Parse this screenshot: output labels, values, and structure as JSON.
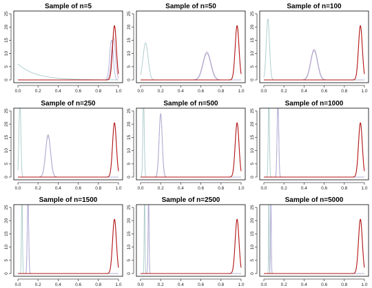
{
  "figure": {
    "colors": {
      "true_density": "#b01010",
      "estimate_a": "#a8c8c8",
      "estimate_b": "#c0a0c0",
      "estimate_c": "#b0b0d8",
      "frame": "#000000"
    }
  },
  "chart_data": [
    {
      "type": "line",
      "title": "Sample of n=5",
      "xlim": [
        0,
        1
      ],
      "ylim": [
        0,
        25
      ],
      "xticks": [
        "0.0",
        "0.2",
        "0.4",
        "0.6",
        "0.8",
        "1.0"
      ],
      "yticks": [
        "0",
        "5",
        "10",
        "15",
        "20",
        "25"
      ],
      "grid": false,
      "series": [
        {
          "kind": "decay",
          "start": 0.0,
          "peak": 6.0,
          "scale": 0.18,
          "color": "#a8c8c8"
        },
        {
          "kind": "peak",
          "mean": 0.95,
          "sd": 0.02,
          "peak": 16.0,
          "color": "#c0a0c0"
        },
        {
          "kind": "peak",
          "mean": 0.93,
          "sd": 0.018,
          "peak": 15.0,
          "color": "#b0b0d8"
        },
        {
          "kind": "peak",
          "mean": 0.96,
          "sd": 0.019,
          "peak": 20.5,
          "color": "#b01010"
        }
      ]
    },
    {
      "type": "line",
      "title": "Sample of n=50",
      "xlim": [
        0,
        1
      ],
      "ylim": [
        0,
        25
      ],
      "xticks": [
        "0.0",
        "0.2",
        "0.4",
        "0.6",
        "0.8",
        "1.0"
      ],
      "yticks": [
        "0",
        "5",
        "10",
        "15",
        "20",
        "25"
      ],
      "grid": false,
      "series": [
        {
          "kind": "peak",
          "mean": 0.05,
          "sd": 0.025,
          "peak": 14.0,
          "color": "#a8c8c8"
        },
        {
          "kind": "peak",
          "mean": 0.66,
          "sd": 0.04,
          "peak": 10.5,
          "color": "#c0a0c0"
        },
        {
          "kind": "peak",
          "mean": 0.66,
          "sd": 0.038,
          "peak": 10.0,
          "color": "#b0b0d8"
        },
        {
          "kind": "peak",
          "mean": 0.96,
          "sd": 0.019,
          "peak": 20.5,
          "color": "#b01010"
        }
      ]
    },
    {
      "type": "line",
      "title": "Sample of n=100",
      "xlim": [
        0,
        1
      ],
      "ylim": [
        0,
        25
      ],
      "xticks": [
        "0.0",
        "0.2",
        "0.4",
        "0.6",
        "0.8",
        "1.0"
      ],
      "yticks": [
        "0",
        "5",
        "10",
        "15",
        "20",
        "25"
      ],
      "grid": false,
      "series": [
        {
          "kind": "peak",
          "mean": 0.04,
          "sd": 0.016,
          "peak": 23.0,
          "color": "#a8c8c8"
        },
        {
          "kind": "peak",
          "mean": 0.5,
          "sd": 0.035,
          "peak": 11.5,
          "color": "#c0a0c0"
        },
        {
          "kind": "peak",
          "mean": 0.5,
          "sd": 0.033,
          "peak": 11.0,
          "color": "#b0b0d8"
        },
        {
          "kind": "peak",
          "mean": 0.96,
          "sd": 0.019,
          "peak": 20.5,
          "color": "#b01010"
        }
      ]
    },
    {
      "type": "line",
      "title": "Sample of n=250",
      "xlim": [
        0,
        1
      ],
      "ylim": [
        0,
        25
      ],
      "xticks": [
        "0.0",
        "0.2",
        "0.4",
        "0.6",
        "0.8",
        "1.0"
      ],
      "yticks": [
        "0",
        "5",
        "10",
        "15",
        "20",
        "25"
      ],
      "grid": false,
      "series": [
        {
          "kind": "peak",
          "mean": 0.02,
          "sd": 0.009,
          "peak": 30.0,
          "color": "#a8c8c8"
        },
        {
          "kind": "peak",
          "mean": 0.3,
          "sd": 0.025,
          "peak": 16.0,
          "color": "#c0a0c0"
        },
        {
          "kind": "peak",
          "mean": 0.3,
          "sd": 0.024,
          "peak": 15.5,
          "color": "#b0b0d8"
        },
        {
          "kind": "peak",
          "mean": 0.96,
          "sd": 0.019,
          "peak": 20.5,
          "color": "#b01010"
        }
      ]
    },
    {
      "type": "line",
      "title": "Sample of n=500",
      "xlim": [
        0,
        1
      ],
      "ylim": [
        0,
        25
      ],
      "xticks": [
        "0.0",
        "0.2",
        "0.4",
        "0.6",
        "0.8",
        "1.0"
      ],
      "yticks": [
        "0",
        "5",
        "10",
        "15",
        "20",
        "25"
      ],
      "grid": false,
      "series": [
        {
          "kind": "peak",
          "mean": 0.03,
          "sd": 0.007,
          "peak": 30.0,
          "color": "#a8c8c8"
        },
        {
          "kind": "peak",
          "mean": 0.2,
          "sd": 0.016,
          "peak": 24.0,
          "color": "#c0a0c0"
        },
        {
          "kind": "peak",
          "mean": 0.2,
          "sd": 0.015,
          "peak": 23.5,
          "color": "#b0b0d8"
        },
        {
          "kind": "peak",
          "mean": 0.96,
          "sd": 0.019,
          "peak": 20.5,
          "color": "#b01010"
        }
      ]
    },
    {
      "type": "line",
      "title": "Sample of n=1000",
      "xlim": [
        0,
        1
      ],
      "ylim": [
        0,
        25
      ],
      "xticks": [
        "0.0",
        "0.2",
        "0.4",
        "0.6",
        "0.8",
        "1.0"
      ],
      "yticks": [
        "0",
        "5",
        "10",
        "15",
        "20",
        "25"
      ],
      "grid": false,
      "series": [
        {
          "kind": "peak",
          "mean": 0.05,
          "sd": 0.006,
          "peak": 30.0,
          "color": "#a8c8c8"
        },
        {
          "kind": "peak",
          "mean": 0.14,
          "sd": 0.008,
          "peak": 30.0,
          "color": "#c0a0c0"
        },
        {
          "kind": "peak",
          "mean": 0.14,
          "sd": 0.0075,
          "peak": 30.0,
          "color": "#b0b0d8"
        },
        {
          "kind": "peak",
          "mean": 0.96,
          "sd": 0.019,
          "peak": 20.5,
          "color": "#b01010"
        }
      ]
    },
    {
      "type": "line",
      "title": "Sample of n=1500",
      "xlim": [
        0,
        1
      ],
      "ylim": [
        0,
        25
      ],
      "xticks": [
        "0.0",
        "0.2",
        "0.4",
        "0.6",
        "0.8",
        "1.0"
      ],
      "yticks": [
        "0",
        "5",
        "10",
        "15",
        "20",
        "25"
      ],
      "grid": false,
      "series": [
        {
          "kind": "peak",
          "mean": 0.04,
          "sd": 0.005,
          "peak": 30.0,
          "color": "#a8c8c8"
        },
        {
          "kind": "peak",
          "mean": 0.1,
          "sd": 0.007,
          "peak": 30.0,
          "color": "#c0a0c0"
        },
        {
          "kind": "peak",
          "mean": 0.1,
          "sd": 0.0065,
          "peak": 30.0,
          "color": "#b0b0d8"
        },
        {
          "kind": "peak",
          "mean": 0.96,
          "sd": 0.019,
          "peak": 20.5,
          "color": "#b01010"
        }
      ]
    },
    {
      "type": "line",
      "title": "Sample of n=2500",
      "xlim": [
        0,
        1
      ],
      "ylim": [
        0,
        25
      ],
      "xticks": [
        "0.0",
        "0.2",
        "0.4",
        "0.6",
        "0.8",
        "1.0"
      ],
      "yticks": [
        "0",
        "5",
        "10",
        "15",
        "20",
        "25"
      ],
      "grid": false,
      "series": [
        {
          "kind": "peak",
          "mean": 0.04,
          "sd": 0.004,
          "peak": 30.0,
          "color": "#a8c8c8"
        },
        {
          "kind": "peak",
          "mean": 0.08,
          "sd": 0.005,
          "peak": 30.0,
          "color": "#c0a0c0"
        },
        {
          "kind": "peak",
          "mean": 0.08,
          "sd": 0.0048,
          "peak": 30.0,
          "color": "#b0b0d8"
        },
        {
          "kind": "peak",
          "mean": 0.96,
          "sd": 0.019,
          "peak": 20.5,
          "color": "#b01010"
        }
      ]
    },
    {
      "type": "line",
      "title": "Sample of n=5000",
      "xlim": [
        0,
        1
      ],
      "ylim": [
        0,
        25
      ],
      "xticks": [
        "0.0",
        "0.2",
        "0.4",
        "0.6",
        "0.8",
        "1.0"
      ],
      "yticks": [
        "0",
        "5",
        "10",
        "15",
        "20",
        "25"
      ],
      "grid": false,
      "series": [
        {
          "kind": "peak",
          "mean": 0.05,
          "sd": 0.003,
          "peak": 30.0,
          "color": "#a8c8c8"
        },
        {
          "kind": "peak",
          "mean": 0.07,
          "sd": 0.004,
          "peak": 30.0,
          "color": "#c0a0c0"
        },
        {
          "kind": "peak",
          "mean": 0.07,
          "sd": 0.0038,
          "peak": 30.0,
          "color": "#b0b0d8"
        },
        {
          "kind": "peak",
          "mean": 0.96,
          "sd": 0.019,
          "peak": 20.5,
          "color": "#b01010"
        }
      ]
    }
  ]
}
